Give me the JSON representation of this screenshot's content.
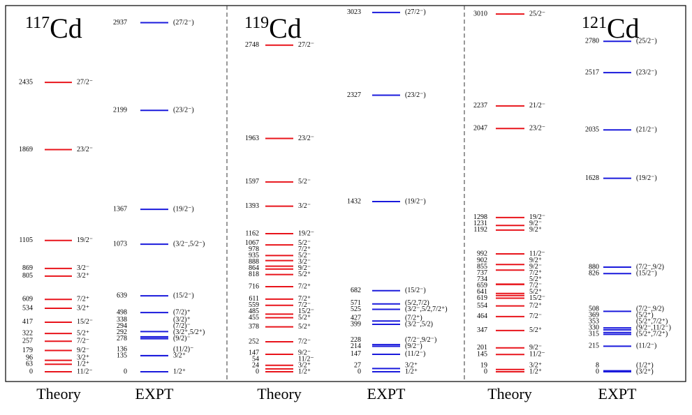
{
  "panels": [
    {
      "nucleus": {
        "mass": "117",
        "symbol": "Cd"
      },
      "columns": [
        {
          "label": "Theory",
          "color": "#e8141b",
          "levels": [
            {
              "energy": 0,
              "spin": "11/2⁻"
            },
            {
              "energy": 63,
              "spin": "1/2⁺"
            },
            {
              "energy": 96,
              "spin": "3/2⁺"
            },
            {
              "energy": 179,
              "spin": "9/2⁻"
            },
            {
              "energy": 257,
              "spin": "7/2⁻"
            },
            {
              "energy": 322,
              "spin": "5/2⁺"
            },
            {
              "energy": 417,
              "spin": "15/2⁻"
            },
            {
              "energy": 534,
              "spin": "3/2⁺"
            },
            {
              "energy": 609,
              "spin": "7/2⁺"
            },
            {
              "energy": 805,
              "spin": "3/2⁺"
            },
            {
              "energy": 869,
              "spin": "3/2⁻"
            },
            {
              "energy": 1105,
              "spin": "19/2⁻"
            },
            {
              "energy": 1869,
              "spin": "23/2⁻"
            },
            {
              "energy": 2435,
              "spin": "27/2⁻"
            }
          ]
        },
        {
          "label": "EXPT",
          "color": "#1a1adc",
          "levels": [
            {
              "energy": 0,
              "spin": "1/2⁺"
            },
            {
              "energy": 135,
              "spin": "3/2⁺"
            },
            {
              "energy": 136,
              "spin": "(11/2)⁻"
            },
            {
              "energy": 278,
              "spin": "(9/2)⁻"
            },
            {
              "energy": 292,
              "spin": "(3/2⁺,5/2⁺)"
            },
            {
              "energy": 294,
              "spin": "(7/2)⁻"
            },
            {
              "energy": 338,
              "spin": "(3/2)⁺"
            },
            {
              "energy": 498,
              "spin": "(7/2)⁺"
            },
            {
              "energy": 639,
              "spin": "(15/2⁻)"
            },
            {
              "energy": 1073,
              "spin": "(3/2⁻,5/2⁻)"
            },
            {
              "energy": 1367,
              "spin": "(19/2⁻)"
            },
            {
              "energy": 2199,
              "spin": "(23/2⁻)"
            },
            {
              "energy": 2937,
              "spin": "(27/2⁻)"
            }
          ]
        }
      ]
    },
    {
      "nucleus": {
        "mass": "119",
        "symbol": "Cd"
      },
      "columns": [
        {
          "label": "Theory",
          "color": "#e8141b",
          "levels": [
            {
              "energy": 0,
              "spin": "1/2⁺"
            },
            {
              "energy": 24,
              "spin": "3/2⁺"
            },
            {
              "energy": 54,
              "spin": "11/2⁻"
            },
            {
              "energy": 147,
              "spin": "9/2⁻"
            },
            {
              "energy": 252,
              "spin": "7/2⁻"
            },
            {
              "energy": 378,
              "spin": "5/2⁺"
            },
            {
              "energy": 455,
              "spin": "5/2⁺"
            },
            {
              "energy": 485,
              "spin": "15/2⁻"
            },
            {
              "energy": 559,
              "spin": "7/2⁻"
            },
            {
              "energy": 611,
              "spin": "7/2⁺"
            },
            {
              "energy": 716,
              "spin": "7/2⁺"
            },
            {
              "energy": 818,
              "spin": "5/2⁺"
            },
            {
              "energy": 864,
              "spin": "9/2⁻"
            },
            {
              "energy": 888,
              "spin": "3/2⁻"
            },
            {
              "energy": 935,
              "spin": "5/2⁻"
            },
            {
              "energy": 978,
              "spin": "7/2⁺"
            },
            {
              "energy": 1067,
              "spin": "5/2⁻"
            },
            {
              "energy": 1162,
              "spin": "19/2⁻"
            },
            {
              "energy": 1393,
              "spin": "3/2⁻"
            },
            {
              "energy": 1597,
              "spin": "5/2⁻"
            },
            {
              "energy": 1963,
              "spin": "23/2⁻"
            },
            {
              "energy": 2748,
              "spin": "27/2⁻"
            }
          ]
        },
        {
          "label": "EXPT",
          "color": "#1a1adc",
          "levels": [
            {
              "energy": 0,
              "spin": "1/2⁺"
            },
            {
              "energy": 27,
              "spin": "3/2⁺"
            },
            {
              "energy": 147,
              "spin": "(11/2⁻)"
            },
            {
              "energy": 214,
              "spin": "(9/2⁻)"
            },
            {
              "energy": 228,
              "spin": "(7/2⁻,9/2⁻)"
            },
            {
              "energy": 399,
              "spin": "(3/2⁻,5/2)"
            },
            {
              "energy": 427,
              "spin": "(7/2⁺)"
            },
            {
              "energy": 525,
              "spin": "(3/2⁻,5/2,7/2⁺)"
            },
            {
              "energy": 571,
              "spin": "(5/2,7/2)"
            },
            {
              "energy": 682,
              "spin": "(15/2⁻)"
            },
            {
              "energy": 1432,
              "spin": "(19/2⁻)"
            },
            {
              "energy": 2327,
              "spin": "(23/2⁻)"
            },
            {
              "energy": 3023,
              "spin": "(27/2⁻)"
            }
          ]
        }
      ]
    },
    {
      "nucleus": {
        "mass": "121",
        "symbol": "Cd"
      },
      "columns": [
        {
          "label": "Theory",
          "color": "#e8141b",
          "levels": [
            {
              "energy": 0,
              "spin": "1/2⁺"
            },
            {
              "energy": 19,
              "spin": "3/2⁺"
            },
            {
              "energy": 145,
              "spin": "11/2⁻"
            },
            {
              "energy": 201,
              "spin": "9/2⁻"
            },
            {
              "energy": 347,
              "spin": "5/2⁺"
            },
            {
              "energy": 464,
              "spin": "7/2⁻"
            },
            {
              "energy": 554,
              "spin": "7/2⁺"
            },
            {
              "energy": 619,
              "spin": "15/2⁻"
            },
            {
              "energy": 641,
              "spin": "5/2⁺"
            },
            {
              "energy": 659,
              "spin": "7/2⁻"
            },
            {
              "energy": 734,
              "spin": "5/2⁺"
            },
            {
              "energy": 737,
              "spin": "7/2⁺"
            },
            {
              "energy": 855,
              "spin": "9/2⁻"
            },
            {
              "energy": 902,
              "spin": "9/2⁺"
            },
            {
              "energy": 992,
              "spin": "11/2⁻"
            },
            {
              "energy": 1192,
              "spin": "9/2⁺"
            },
            {
              "energy": 1231,
              "spin": "9/2⁻"
            },
            {
              "energy": 1298,
              "spin": "19/2⁻"
            },
            {
              "energy": 2047,
              "spin": "23/2⁻"
            },
            {
              "energy": 2237,
              "spin": "21/2⁻"
            },
            {
              "energy": 3010,
              "spin": "25/2⁻"
            }
          ]
        },
        {
          "label": "EXPT",
          "color": "#1a1adc",
          "levels": [
            {
              "energy": 0,
              "spin": "(3/2⁺)"
            },
            {
              "energy": 8,
              "spin": "(1/2⁺)"
            },
            {
              "energy": 215,
              "spin": "(11/2⁻)"
            },
            {
              "energy": 315,
              "spin": "(5/2⁺,7/2⁺)"
            },
            {
              "energy": 330,
              "spin": "(9/2⁻,11/2⁻)"
            },
            {
              "energy": 353,
              "spin": "(5/2⁺,7/2⁺)"
            },
            {
              "energy": 369,
              "spin": "(5/2⁺)"
            },
            {
              "energy": 508,
              "spin": "(7/2⁻,9/2)"
            },
            {
              "energy": 826,
              "spin": "(15/2⁻)"
            },
            {
              "energy": 880,
              "spin": "(7/2⁻,9/2)"
            },
            {
              "energy": 1628,
              "spin": "(19/2⁻)"
            },
            {
              "energy": 2035,
              "spin": "(21/2⁻)"
            },
            {
              "energy": 2517,
              "spin": "(23/2⁻)"
            },
            {
              "energy": 2780,
              "spin": "(25/2⁻)"
            }
          ]
        }
      ]
    }
  ]
}
